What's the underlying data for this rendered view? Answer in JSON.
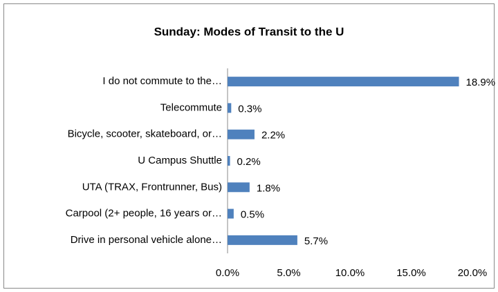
{
  "chart_data": {
    "type": "hbar",
    "title": "Sunday: Modes of Transit to the U",
    "categories": [
      "I do not commute to the…",
      "Telecommute",
      "Bicycle, scooter, skateboard, or…",
      "U Campus Shuttle",
      "UTA (TRAX, Frontrunner, Bus)",
      "Carpool (2+ people, 16 years or…",
      "Drive in personal vehicle alone…"
    ],
    "values": [
      18.9,
      0.3,
      2.2,
      0.2,
      1.8,
      0.5,
      5.7
    ],
    "value_labels": [
      "18.9%",
      "0.3%",
      "2.2%",
      "0.2%",
      "1.8%",
      "0.5%",
      "5.7%"
    ],
    "color": "#4f81bd",
    "xlim": [
      0,
      20
    ],
    "xticks": [
      {
        "value": 0,
        "label": "0.0%"
      },
      {
        "value": 5,
        "label": "5.0%"
      },
      {
        "value": 10,
        "label": "10.0%"
      },
      {
        "value": 15,
        "label": "15.0%"
      },
      {
        "value": 20,
        "label": "20.0%"
      }
    ],
    "grid": false
  }
}
